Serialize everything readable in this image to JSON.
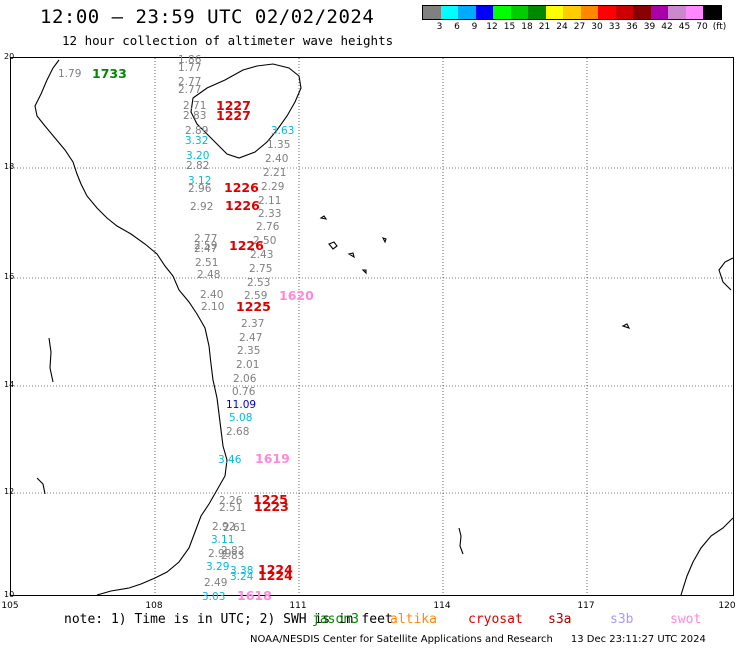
{
  "title": "12:00 — 23:59 UTC 02/02/2024",
  "subtitle": "12 hour collection of altimeter wave heights",
  "legend": {
    "colors": [
      "#808080",
      "#00ffff",
      "#00aaff",
      "#0000ff",
      "#00ff00",
      "#00cc00",
      "#008800",
      "#ffff00",
      "#ffcc00",
      "#ff8800",
      "#ff0000",
      "#cc0000",
      "#880000",
      "#aa00aa",
      "#cc88cc",
      "#ff88ff",
      "#000000"
    ],
    "labels": [
      "3",
      "6",
      "9",
      "12",
      "15",
      "18",
      "21",
      "24",
      "27",
      "30",
      "33",
      "36",
      "39",
      "42",
      "45",
      "70",
      "(ft)"
    ]
  },
  "axes": {
    "lat_labels": [
      "20",
      "18",
      "16",
      "14",
      "12",
      "10"
    ],
    "lon_labels": [
      "105",
      "108",
      "111",
      "114",
      "117",
      "120"
    ]
  },
  "observations": [
    {
      "text": "1.79",
      "color": "#808080",
      "size": "n"
    },
    {
      "text": "1733",
      "color": "#008800",
      "size": "b"
    },
    {
      "text": "1.86",
      "color": "#808080",
      "size": "n"
    },
    {
      "text": "1.77",
      "color": "#808080",
      "size": "n"
    },
    {
      "text": "2.77",
      "color": "#808080",
      "size": "n"
    },
    {
      "text": "2.77",
      "color": "#808080",
      "size": "n"
    },
    {
      "text": "2.71",
      "color": "#808080",
      "size": "n"
    },
    {
      "text": "1227",
      "color": "#dd0000",
      "size": "b"
    },
    {
      "text": "2.83",
      "color": "#808080",
      "size": "n"
    },
    {
      "text": "1227",
      "color": "#dd0000",
      "size": "b"
    },
    {
      "text": "2.89",
      "color": "#808080",
      "size": "n"
    },
    {
      "text": "3.63",
      "color": "#00bbdd",
      "size": "n"
    },
    {
      "text": "3.32",
      "color": "#00bbdd",
      "size": "n"
    },
    {
      "text": "1.35",
      "color": "#808080",
      "size": "n"
    },
    {
      "text": "3.20",
      "color": "#00bbdd",
      "size": "n"
    },
    {
      "text": "2.40",
      "color": "#808080",
      "size": "n"
    },
    {
      "text": "2.82",
      "color": "#808080",
      "size": "n"
    },
    {
      "text": "2.21",
      "color": "#808080",
      "size": "n"
    },
    {
      "text": "3.12",
      "color": "#00bbdd",
      "size": "n"
    },
    {
      "text": "2.96",
      "color": "#808080",
      "size": "n"
    },
    {
      "text": "1226",
      "color": "#dd0000",
      "size": "b"
    },
    {
      "text": "2.29",
      "color": "#808080",
      "size": "n"
    },
    {
      "text": "2.11",
      "color": "#808080",
      "size": "n"
    },
    {
      "text": "2.92",
      "color": "#808080",
      "size": "n"
    },
    {
      "text": "1226",
      "color": "#dd0000",
      "size": "b"
    },
    {
      "text": "2.33",
      "color": "#808080",
      "size": "n"
    },
    {
      "text": "2.76",
      "color": "#808080",
      "size": "n"
    },
    {
      "text": "2.77",
      "color": "#808080",
      "size": "n"
    },
    {
      "text": "2.50",
      "color": "#808080",
      "size": "n"
    },
    {
      "text": "2.59",
      "color": "#808080",
      "size": "n"
    },
    {
      "text": "2.47",
      "color": "#808080",
      "size": "n"
    },
    {
      "text": "1226",
      "color": "#dd0000",
      "size": "b"
    },
    {
      "text": "2.43",
      "color": "#808080",
      "size": "n"
    },
    {
      "text": "2.51",
      "color": "#808080",
      "size": "n"
    },
    {
      "text": "2.75",
      "color": "#808080",
      "size": "n"
    },
    {
      "text": "2.48",
      "color": "#808080",
      "size": "n"
    },
    {
      "text": "2.53",
      "color": "#808080",
      "size": "n"
    },
    {
      "text": "2.40",
      "color": "#808080",
      "size": "n"
    },
    {
      "text": "2.59",
      "color": "#808080",
      "size": "n"
    },
    {
      "text": "1620",
      "color": "#ff88dd",
      "size": "b"
    },
    {
      "text": "2.10",
      "color": "#808080",
      "size": "n"
    },
    {
      "text": "1225",
      "color": "#dd0000",
      "size": "b"
    },
    {
      "text": "2.37",
      "color": "#808080",
      "size": "n"
    },
    {
      "text": "2.47",
      "color": "#808080",
      "size": "n"
    },
    {
      "text": "2.35",
      "color": "#808080",
      "size": "n"
    },
    {
      "text": "2.01",
      "color": "#808080",
      "size": "n"
    },
    {
      "text": "2.06",
      "color": "#808080",
      "size": "n"
    },
    {
      "text": "0.76",
      "color": "#808080",
      "size": "n"
    },
    {
      "text": "11.09",
      "color": "#0000cc",
      "size": "n"
    },
    {
      "text": "5.08",
      "color": "#00bbdd",
      "size": "n"
    },
    {
      "text": "2.68",
      "color": "#808080",
      "size": "n"
    },
    {
      "text": "3.46",
      "color": "#00bbdd",
      "size": "n"
    },
    {
      "text": "1619",
      "color": "#ff88dd",
      "size": "b"
    },
    {
      "text": "2.26",
      "color": "#808080",
      "size": "n"
    },
    {
      "text": "1225",
      "color": "#dd0000",
      "size": "b"
    },
    {
      "text": "2.51",
      "color": "#808080",
      "size": "n"
    },
    {
      "text": "1223",
      "color": "#dd0000",
      "size": "b"
    },
    {
      "text": "2.92",
      "color": "#808080",
      "size": "n"
    },
    {
      "text": "2.61",
      "color": "#808080",
      "size": "n"
    },
    {
      "text": "3.11",
      "color": "#00bbdd",
      "size": "n"
    },
    {
      "text": "2.99",
      "color": "#808080",
      "size": "n"
    },
    {
      "text": "2.82",
      "color": "#808080",
      "size": "n"
    },
    {
      "text": "2.83",
      "color": "#808080",
      "size": "n"
    },
    {
      "text": "3.29",
      "color": "#00bbdd",
      "size": "n"
    },
    {
      "text": "3.38",
      "color": "#00bbdd",
      "size": "n"
    },
    {
      "text": "1224",
      "color": "#dd0000",
      "size": "b"
    },
    {
      "text": "3.24",
      "color": "#00bbdd",
      "size": "n"
    },
    {
      "text": "1224",
      "color": "#dd0000",
      "size": "b"
    },
    {
      "text": "2.49",
      "color": "#808080",
      "size": "n"
    },
    {
      "text": "3.03",
      "color": "#00bbdd",
      "size": "n"
    },
    {
      "text": "1618",
      "color": "#ff88dd",
      "size": "b"
    }
  ],
  "note": "note: 1) Time is in UTC; 2) SWH is in feet",
  "satellites": [
    {
      "name": "jason3",
      "color": "#008800"
    },
    {
      "name": "altika",
      "color": "#ff8800"
    },
    {
      "name": "cryosat",
      "color": "#dd0000"
    },
    {
      "name": "s3a",
      "color": "#aa0000"
    },
    {
      "name": "s3b",
      "color": "#aa99ee"
    },
    {
      "name": "swot",
      "color": "#ff88dd"
    }
  ],
  "footer": {
    "center": "NOAA/NESDIS Center for Satellite Applications and Research",
    "timestamp": "13 Dec 23:11:27 UTC 2024"
  }
}
